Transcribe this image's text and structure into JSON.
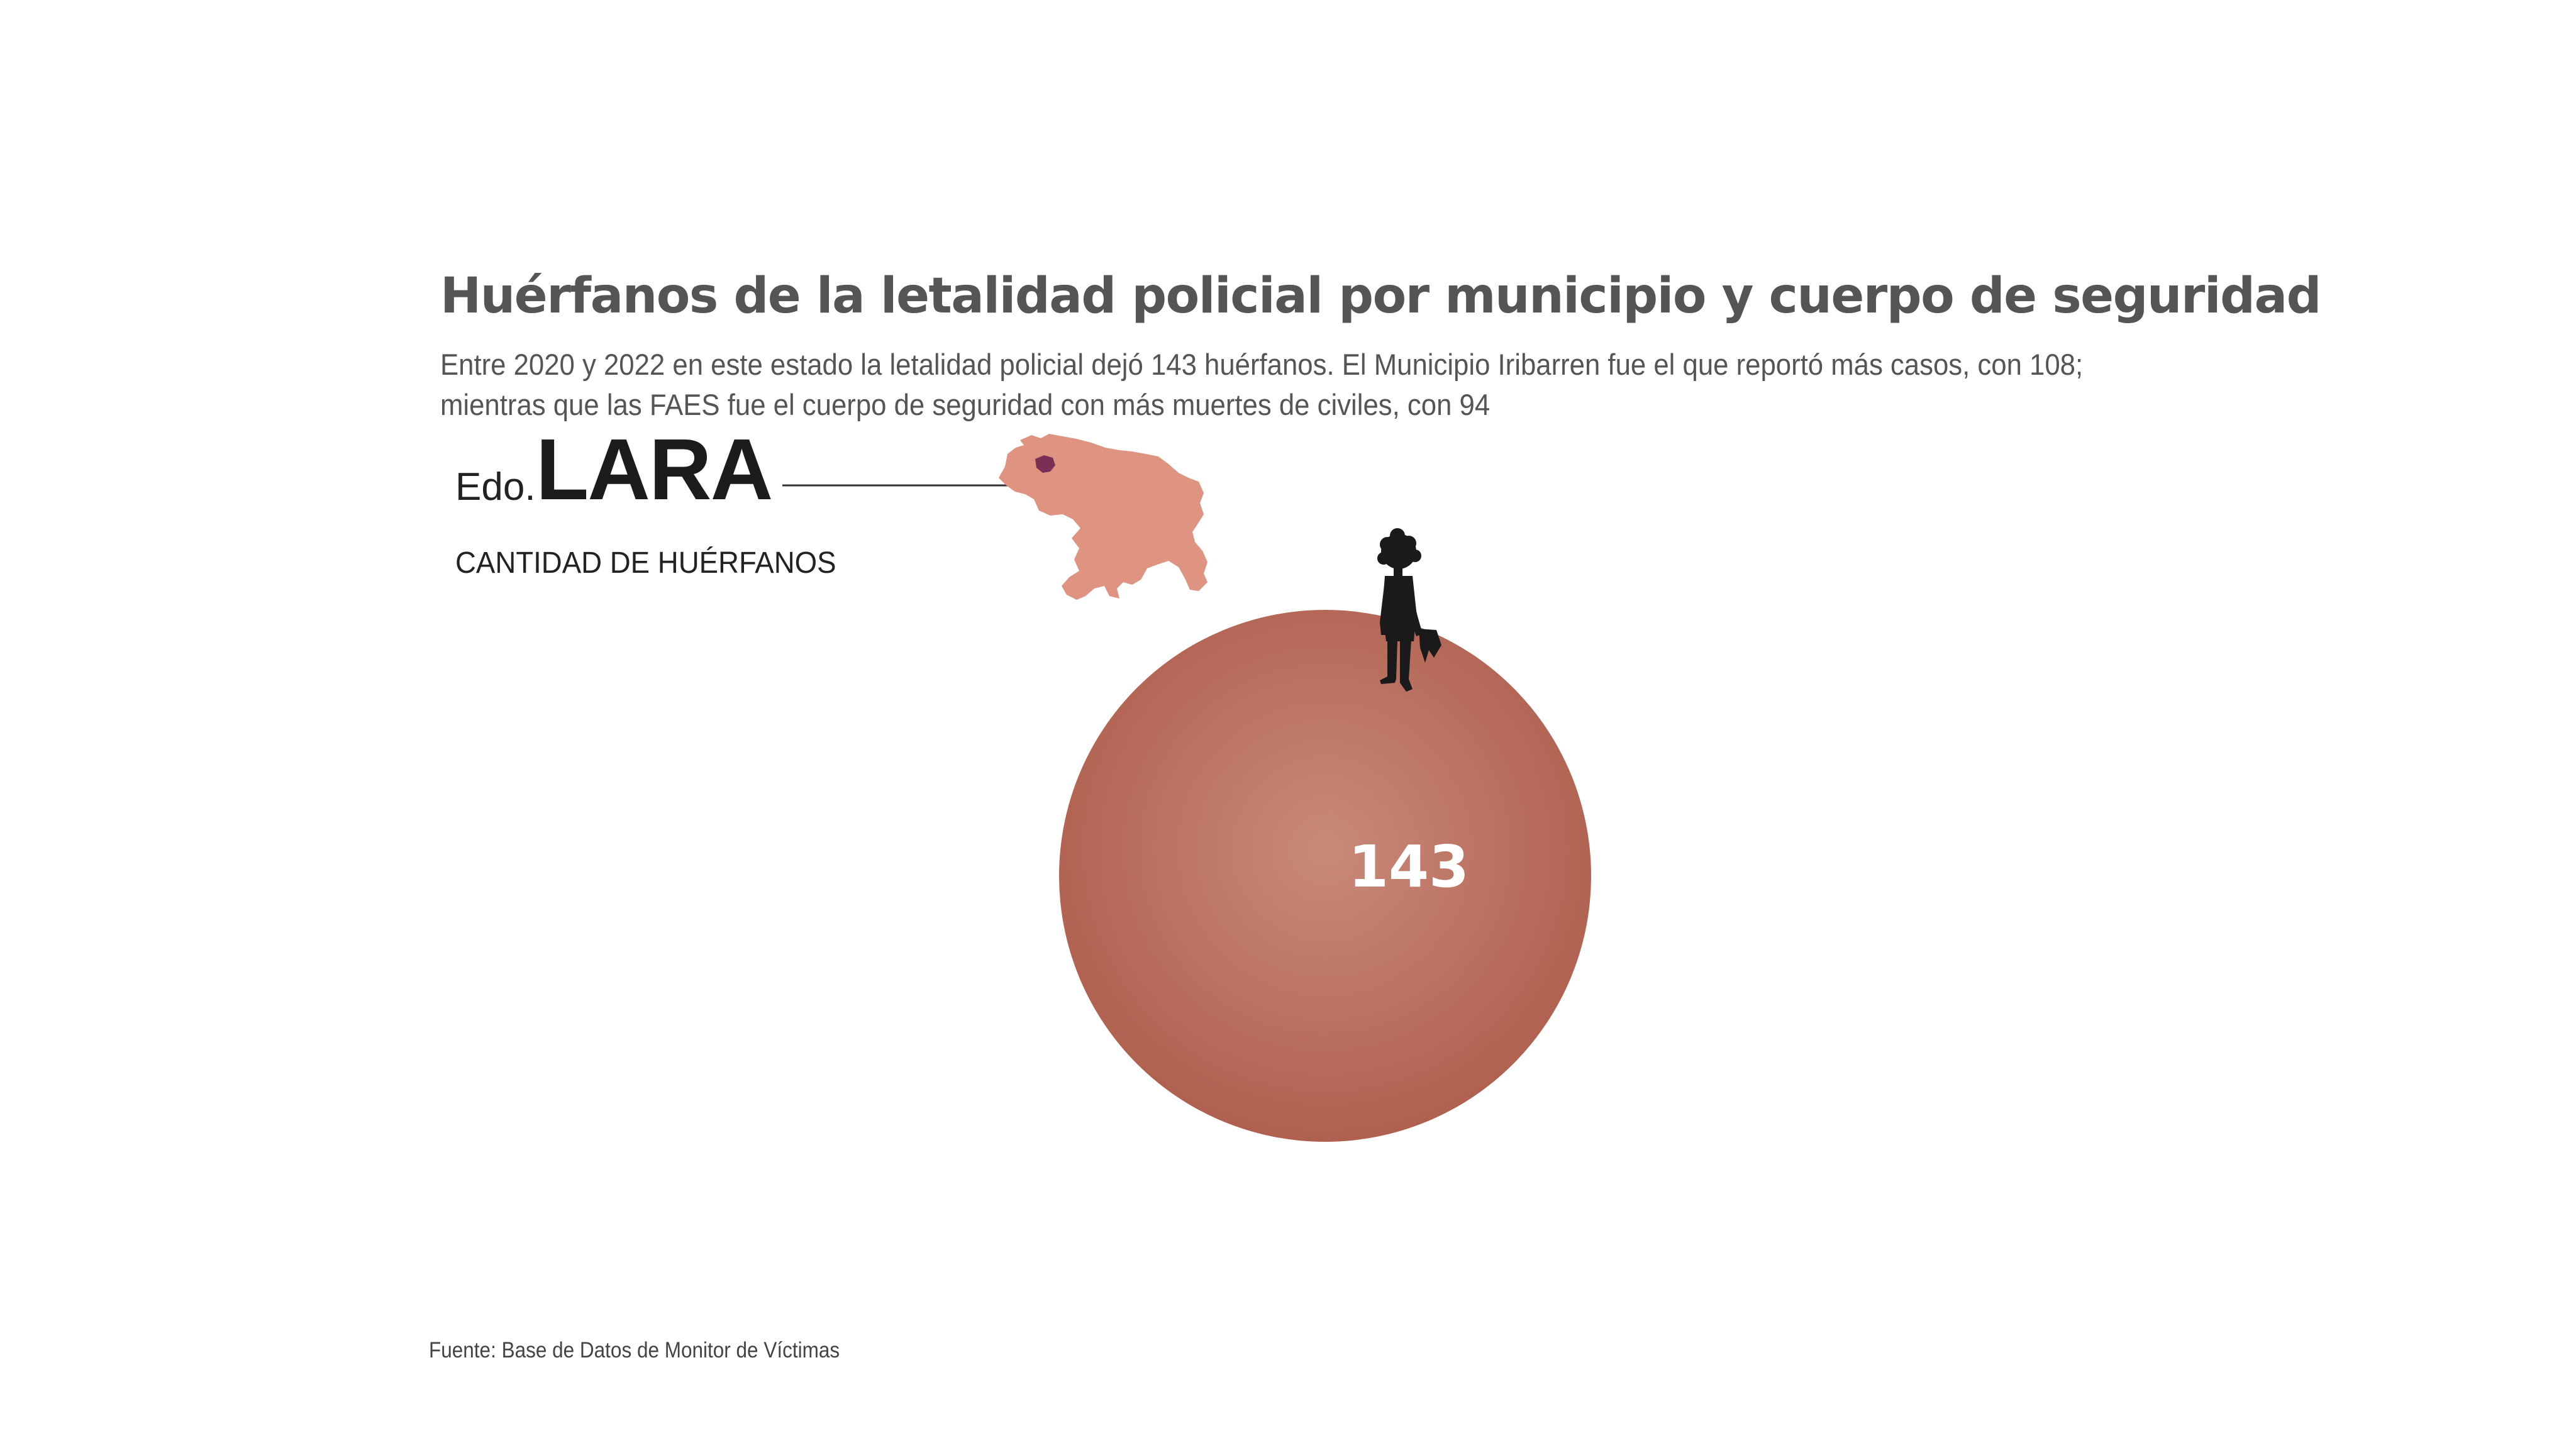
{
  "title": "Huérfanos de la letalidad policial por municipio y cuerpo de seguridad",
  "subtitle": {
    "line1": "Entre 2020 y 2022 en este estado la letalidad policial dejó 143 huérfanos. El Municipio Iribarren fue el que reportó más casos, con 108;",
    "line2": "mientras que las FAES fue el cuerpo de seguridad con más muertes de civiles, con 94"
  },
  "state": {
    "prefix": "Edo.",
    "name": "LARA"
  },
  "measure_label": "CANTIDAD DE HUÉRFANOS",
  "source": "Fuente: Base de Datos de Monitor de Víctimas",
  "colors": {
    "bubble_center": "#c98a7a",
    "bubble_edge": "#b0604f",
    "map_fill": "#de9480",
    "map_highlight": "#7a2f57",
    "text_dark": "#1c1c1c",
    "text_gray": "#555555"
  },
  "icons": {
    "map": "venezuela-map-icon",
    "figure": "child-silhouette-icon"
  },
  "chart_data": {
    "type": "bubble",
    "title": "Huérfanos de la letalidad policial por municipio y cuerpo de seguridad",
    "series": [
      {
        "name": "Edo. LARA",
        "value": 143,
        "label": "143"
      }
    ],
    "unit": "huérfanos"
  }
}
